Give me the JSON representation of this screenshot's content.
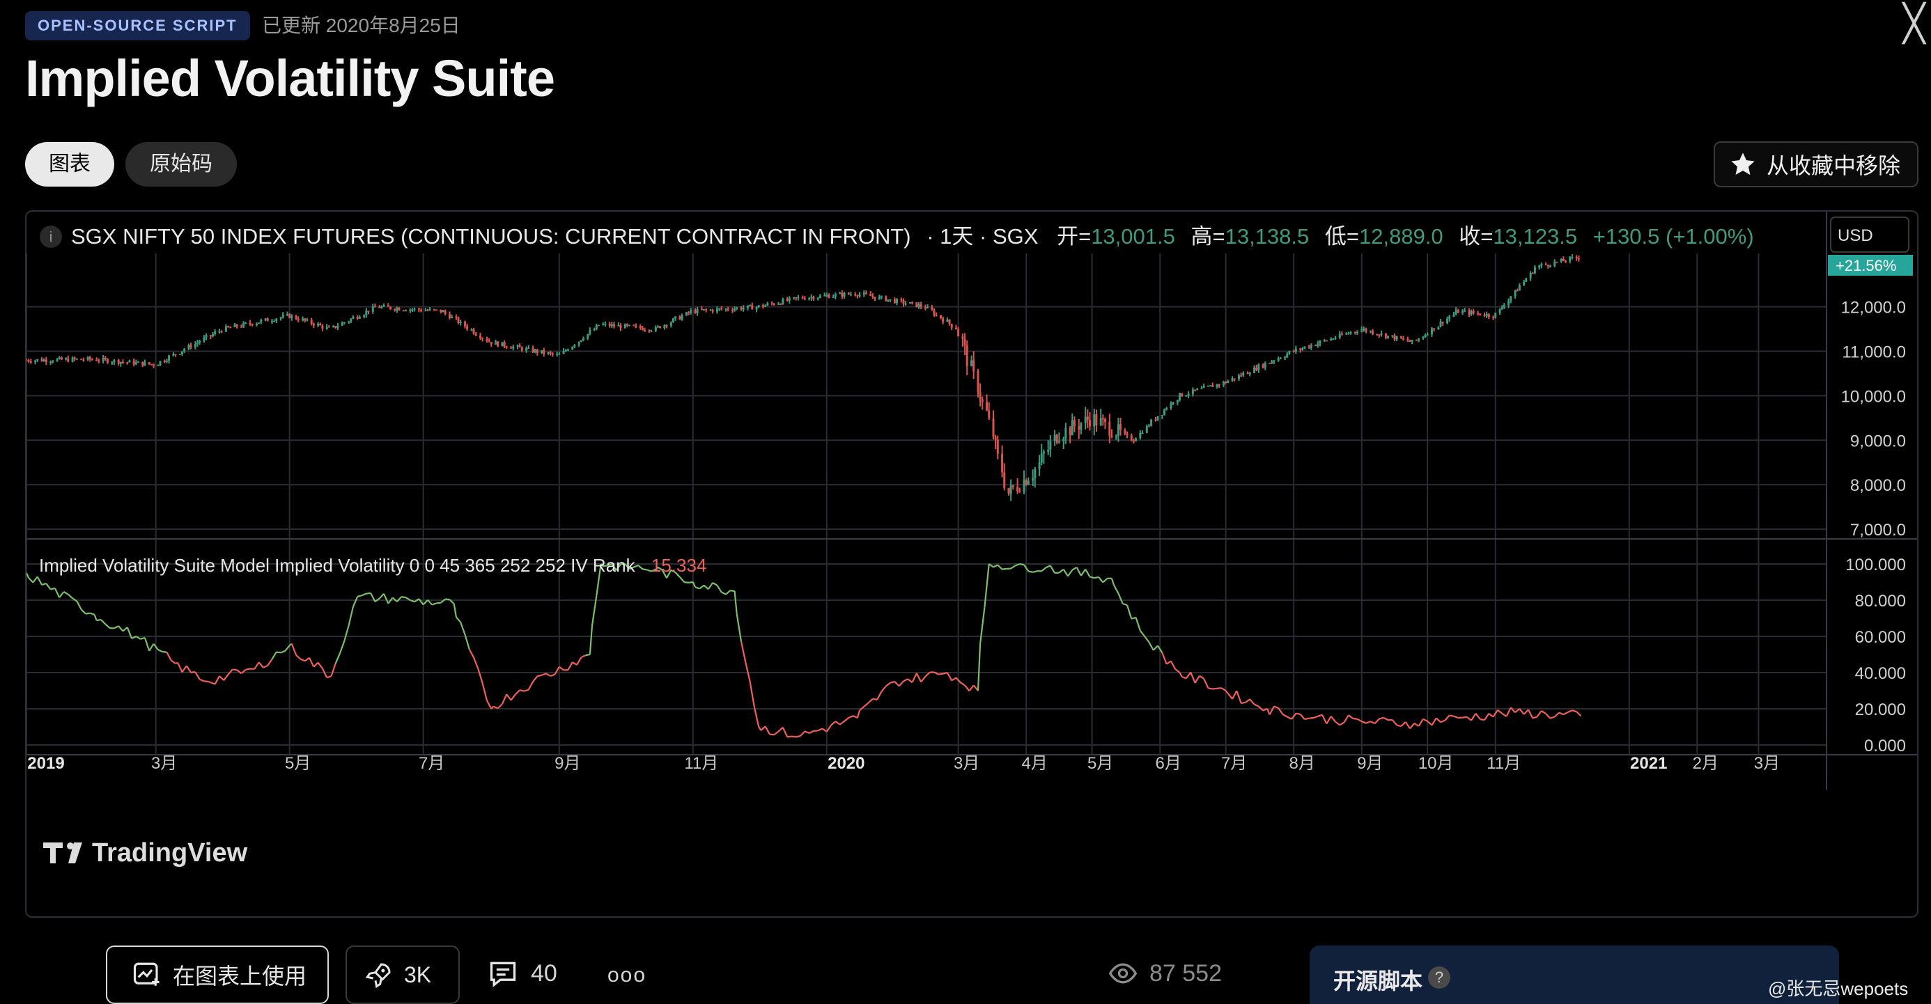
{
  "header": {
    "badge": "OPEN-SOURCE SCRIPT",
    "updated": "已更新 2020年8月25日",
    "title": "Implied Volatility Suite",
    "tabs": [
      {
        "label": "图表"
      },
      {
        "label": "原始码"
      }
    ],
    "favorite_button": "从收藏中移除"
  },
  "chart_header": {
    "symbol": "SGX NIFTY 50 INDEX FUTURES (CONTINUOUS: CURRENT CONTRACT IN FRONT)",
    "interval": "· 1天 · SGX",
    "ohlc": [
      {
        "key": "开=",
        "value": "13,001.5"
      },
      {
        "key": "高=",
        "value": "13,138.5"
      },
      {
        "key": "低=",
        "value": "12,889.0"
      },
      {
        "key": "收=",
        "value": "13,123.5"
      }
    ],
    "change": "+130.5 (+1.00%)",
    "currency": "USD",
    "pct_badge": "+21.56%"
  },
  "indicator": {
    "label": "Implied Volatility Suite Model Implied Volatility 0 0 45 365 252 252 IV Rank",
    "value": "15.334"
  },
  "colors": {
    "up": "#3f9a7f",
    "down": "#d9534f",
    "iv_green": "#7cbf6a",
    "iv_red": "#f0605a",
    "accent": "#26a69a"
  },
  "chart_data": [
    {
      "type": "candlestick",
      "title": "SGX NIFTY 50 INDEX FUTURES (CONTINUOUS: CURRENT CONTRACT IN FRONT)",
      "ylim": [
        7000,
        13200
      ],
      "y_ticks": [
        "12,000.0",
        "11,000.0",
        "10,000.0",
        "9,000.0",
        "8,000.0",
        "7,000.0"
      ],
      "x_ticks": [
        "2019",
        "3月",
        "5月",
        "7月",
        "9月",
        "11月",
        "2020",
        "3月",
        "4月",
        "5月",
        "6月",
        "7月",
        "8月",
        "9月",
        "10月",
        "11月",
        "2021",
        "2月",
        "3月"
      ],
      "close_path": [
        [
          "2019-01-01",
          10800
        ],
        [
          "2019-02-01",
          10820
        ],
        [
          "2019-03-01",
          10700
        ],
        [
          "2019-04-01",
          11500
        ],
        [
          "2019-05-01",
          11800
        ],
        [
          "2019-05-20",
          11500
        ],
        [
          "2019-06-10",
          12000
        ],
        [
          "2019-07-10",
          11900
        ],
        [
          "2019-08-01",
          11200
        ],
        [
          "2019-09-01",
          10900
        ],
        [
          "2019-09-20",
          11600
        ],
        [
          "2019-10-15",
          11500
        ],
        [
          "2019-11-01",
          11900
        ],
        [
          "2019-12-01",
          12000
        ],
        [
          "2019-12-20",
          12200
        ],
        [
          "2020-01-15",
          12300
        ],
        [
          "2020-02-15",
          12000
        ],
        [
          "2020-03-01",
          11500
        ],
        [
          "2020-03-15",
          9500
        ],
        [
          "2020-03-24",
          7800
        ],
        [
          "2020-04-05",
          8300
        ],
        [
          "2020-04-15",
          9100
        ],
        [
          "2020-05-01",
          9500
        ],
        [
          "2020-05-20",
          9000
        ],
        [
          "2020-06-10",
          10000
        ],
        [
          "2020-07-01",
          10300
        ],
        [
          "2020-08-01",
          11000
        ],
        [
          "2020-09-01",
          11500
        ],
        [
          "2020-09-25",
          11200
        ],
        [
          "2020-10-15",
          11900
        ],
        [
          "2020-11-01",
          11800
        ],
        [
          "2020-11-20",
          12900
        ],
        [
          "2020-12-10",
          13120
        ]
      ]
    },
    {
      "type": "line",
      "series": [
        {
          "name": "IV Rank",
          "values": [
            95,
            72,
            60,
            45,
            35,
            42,
            55,
            38,
            82,
            80,
            78,
            20,
            35,
            50,
            100,
            97,
            90,
            85,
            10,
            5,
            15,
            35,
            40,
            30,
            100,
            98,
            92,
            60,
            40,
            30,
            20,
            15,
            13,
            12,
            15,
            18,
            16
          ]
        }
      ],
      "x": [
        "2019-01-01",
        "2019-02-01",
        "2019-02-20",
        "2019-03-10",
        "2019-03-25",
        "2019-04-15",
        "2019-05-01",
        "2019-05-20",
        "2019-06-01",
        "2019-06-25",
        "2019-07-15",
        "2019-08-01",
        "2019-08-20",
        "2019-09-15",
        "2019-09-20",
        "2019-10-15",
        "2019-11-01",
        "2019-11-20",
        "2019-12-01",
        "2019-12-20",
        "2020-01-15",
        "2020-02-01",
        "2020-02-25",
        "2020-03-10",
        "2020-03-15",
        "2020-04-10",
        "2020-05-10",
        "2020-05-25",
        "2020-06-10",
        "2020-07-01",
        "2020-07-20",
        "2020-08-10",
        "2020-09-01",
        "2020-09-25",
        "2020-10-15",
        "2020-11-10",
        "2020-12-10"
      ],
      "ylim": [
        0,
        100
      ],
      "y_ticks": [
        "100.000",
        "80.000",
        "60.000",
        "40.000",
        "20.000",
        "0.000"
      ]
    }
  ],
  "logo": "TradingView",
  "footer": {
    "use_label": "在图表上使用",
    "boosts": "3K",
    "comments": "40",
    "more": "ooo",
    "views": "87 552",
    "open_source": "开源脚本",
    "help": "?",
    "watermark": "@张无忌wepoets"
  }
}
